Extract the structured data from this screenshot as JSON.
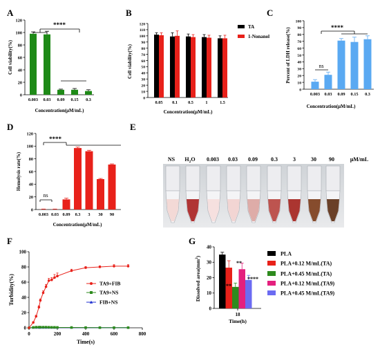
{
  "figure": {
    "panel_letters": [
      "A",
      "B",
      "C",
      "D",
      "E",
      "F",
      "G"
    ]
  },
  "colors": {
    "green": "#1e8a17",
    "black": "#000000",
    "red": "#e8211a",
    "blue": "#5aa9f2",
    "dark_green": "#2e8b1e",
    "navy": "#1d2fd0",
    "magenta": "#e4207e",
    "lavender": "#6b6bf2"
  },
  "photo": {
    "labels": [
      "NS",
      "H2O",
      "0.003",
      "0.03",
      "0.09",
      "0.3",
      "3",
      "30",
      "90"
    ],
    "unit": "μM/mL",
    "tube_colors": [
      "#f3d6d3",
      "#a81f1f",
      "#f6dedd",
      "#f2d2cf",
      "#dba4a0",
      "#b7423d",
      "#a3201b",
      "#7a3a17",
      "#5b2c12"
    ]
  },
  "chart_data": [
    {
      "id": "A",
      "type": "bar",
      "categories": [
        "0.003",
        "0.03",
        "0.09",
        "0.15",
        "0.3"
      ],
      "values": [
        98,
        97,
        8,
        8,
        6
      ],
      "errors": [
        3,
        5,
        1,
        2,
        2
      ],
      "xlabel": "Concentration(μM/mL)",
      "ylabel": "Cell viability(%)",
      "ylim": [
        0,
        120
      ],
      "yticks": [
        0,
        20,
        40,
        60,
        80,
        100,
        120
      ],
      "annotations": [
        "****"
      ]
    },
    {
      "id": "B",
      "type": "bar",
      "categories": [
        "0.05",
        "0.1",
        "0.5",
        "1",
        "1.5"
      ],
      "series": [
        {
          "name": "TA",
          "values": [
            102,
            99,
            99,
            98,
            96
          ],
          "errors": [
            3,
            6,
            4,
            4,
            4
          ]
        },
        {
          "name": "1-Nonanol",
          "values": [
            101,
            100,
            98,
            97,
            96
          ],
          "errors": [
            4,
            8,
            4,
            4,
            5
          ]
        }
      ],
      "xlabel": "Concentration(μM/mL)",
      "ylabel": "Cell viability(%)",
      "ylim": [
        0,
        120
      ],
      "yticks": [
        0,
        10,
        20,
        30,
        40,
        50,
        60,
        70,
        80,
        90,
        100,
        110,
        120
      ],
      "legend": "top-right"
    },
    {
      "id": "C",
      "type": "bar",
      "categories": [
        "0.003",
        "0.03",
        "0.09",
        "0.15",
        "0.3"
      ],
      "values": [
        11,
        21,
        71,
        69,
        73
      ],
      "errors": [
        3,
        4,
        3,
        7,
        5
      ],
      "xlabel": "Concentration(μM/mL)",
      "ylabel": "Percent of LDH release(%)",
      "ylim": [
        0,
        100
      ],
      "yticks": [
        0,
        10,
        20,
        30,
        40,
        50,
        60,
        70,
        80,
        90,
        100
      ],
      "annotations": [
        "ns",
        "****"
      ]
    },
    {
      "id": "D",
      "type": "bar",
      "categories": [
        "0.003",
        "0.03",
        "0.09",
        "0.3",
        "3",
        "30",
        "90"
      ],
      "values": [
        0.3,
        0.3,
        16,
        97,
        92,
        48,
        71
      ],
      "errors": [
        0.5,
        0.5,
        2,
        1.5,
        1.5,
        1,
        1
      ],
      "xlabel": "Concentration(μM/mL)",
      "ylabel": "Hemolysis rate(%)",
      "ylim": [
        0,
        120
      ],
      "yticks": [
        0,
        20,
        40,
        60,
        80,
        100,
        120
      ],
      "annotations": [
        "ns",
        "****"
      ]
    },
    {
      "id": "F",
      "type": "line",
      "series": [
        {
          "name": "TA9+FIB",
          "x": [
            0,
            30,
            50,
            70,
            80,
            100,
            120,
            140,
            160,
            180,
            200,
            300,
            400,
            500,
            600,
            700
          ],
          "y": [
            0,
            7,
            15,
            27,
            36,
            46,
            54,
            62,
            63,
            66,
            68,
            75,
            79,
            80,
            81,
            81
          ],
          "err": [
            0,
            1,
            1.5,
            2,
            2,
            2.5,
            3,
            3,
            3,
            4,
            4,
            2,
            1.5,
            1.5,
            2,
            2
          ]
        },
        {
          "name": "TA9+NS",
          "x": [
            0,
            30,
            50,
            70,
            80,
            100,
            120,
            140,
            160,
            180,
            200,
            300,
            400,
            500,
            600,
            700
          ],
          "y": [
            0,
            0.5,
            0.8,
            0.8,
            0.8,
            0.8,
            0.8,
            0.7,
            0.6,
            0.6,
            0.5,
            0.4,
            0.3,
            0.2,
            0.2,
            0.2
          ],
          "err": [
            0,
            0.3,
            0.5,
            0.5,
            0.5,
            0.5,
            0.5,
            0.5,
            0.5,
            0.5,
            0.5,
            0.3,
            0.3,
            0.3,
            0.3,
            0.3
          ]
        },
        {
          "name": "FIB+NS",
          "x": [
            0,
            30,
            50,
            70,
            80,
            100,
            120,
            140,
            160,
            180,
            200,
            300,
            400,
            500,
            600,
            700
          ],
          "y": [
            0,
            0.2,
            0.2,
            0.2,
            0.2,
            0.2,
            0.2,
            0.2,
            0.2,
            0.2,
            0.2,
            0.2,
            0.2,
            0.2,
            0.2,
            0.2
          ],
          "err": [
            0,
            0,
            0,
            0,
            0,
            0,
            0,
            0,
            0,
            0,
            0,
            0,
            0,
            0,
            0,
            0
          ]
        }
      ],
      "xlabel": "Time(s)",
      "ylabel": "Turbidity(%)",
      "xlim": [
        0,
        800
      ],
      "ylim": [
        0,
        100
      ],
      "xticks": [
        0,
        200,
        400,
        600,
        800
      ],
      "yticks": [
        0,
        20,
        40,
        60,
        80,
        100
      ],
      "legend": "center-right"
    },
    {
      "id": "G",
      "type": "bar",
      "categories": [
        "18"
      ],
      "series": [
        {
          "name": "PLA",
          "values": [
            35
          ],
          "errors": [
            1.5
          ]
        },
        {
          "name": "PLA+0.12 M/mL(TA)",
          "values": [
            26.5
          ],
          "errors": [
            4.5
          ]
        },
        {
          "name": "PLA+0.45 M/mL(TA)",
          "values": [
            14
          ],
          "errors": [
            2.5
          ]
        },
        {
          "name": "PLA+0.12 M/mL(TA9)",
          "values": [
            25.5
          ],
          "errors": [
            4
          ]
        },
        {
          "name": "PLA+0.45 M/mL(TA9)",
          "values": [
            18.5
          ],
          "errors": [
            3
          ]
        }
      ],
      "significance": [
        "",
        "*",
        "****",
        "**",
        "****"
      ],
      "xlabel": "Time(h)",
      "ylabel": "Dissolved area(mm2)",
      "ylim": [
        0,
        40
      ],
      "yticks": [
        0,
        10,
        20,
        30,
        40
      ],
      "legend": "right"
    }
  ]
}
